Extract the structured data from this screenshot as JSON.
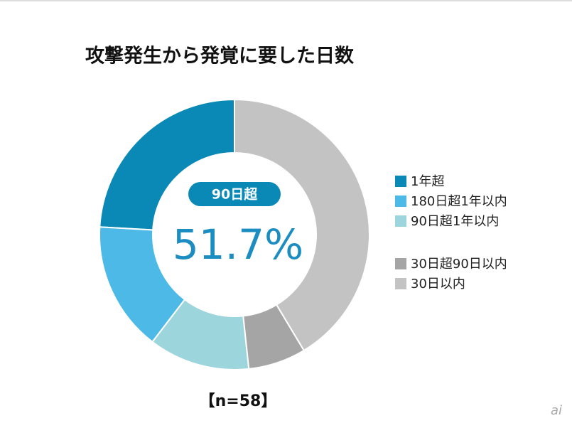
{
  "chart_data": {
    "type": "donut",
    "title": "攻撃発生から発覚に要した日数",
    "categories": [
      "1年超",
      "180日超1年以内",
      "90日超1年以内",
      "30日超90日以内",
      "30日以内"
    ],
    "values": [
      24.1,
      15.5,
      12.1,
      6.9,
      41.4
    ],
    "colors": [
      "#0a89b7",
      "#4cb9e7",
      "#9dd5dc",
      "#a5a5a5",
      "#c3c3c3"
    ],
    "center_label": "90日超",
    "center_value": "51.7%",
    "note": "【n=58】",
    "watermark": "ai"
  }
}
